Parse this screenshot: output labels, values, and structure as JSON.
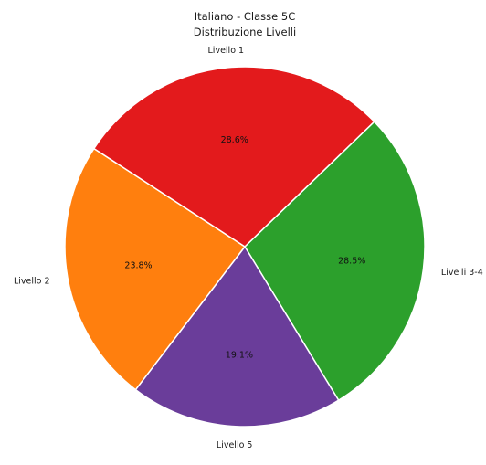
{
  "chart_data": {
    "type": "pie",
    "title": "Italiano - Classe 5C",
    "subtitle": "Distribuzione Livelli",
    "start_angle_deg": 44,
    "direction": "clockwise",
    "slices": [
      {
        "label": "Livelli 3-4",
        "value": 28.5,
        "pct_label": "28.5%",
        "color": "#2ca02c"
      },
      {
        "label": "Livello 5",
        "value": 19.1,
        "pct_label": "19.1%",
        "color": "#6a3d9a"
      },
      {
        "label": "Livello 2",
        "value": 23.8,
        "pct_label": "23.8%",
        "color": "#ff7f0e"
      },
      {
        "label": "Livello 1",
        "value": 28.6,
        "pct_label": "28.6%",
        "color": "#e31a1c"
      }
    ]
  }
}
